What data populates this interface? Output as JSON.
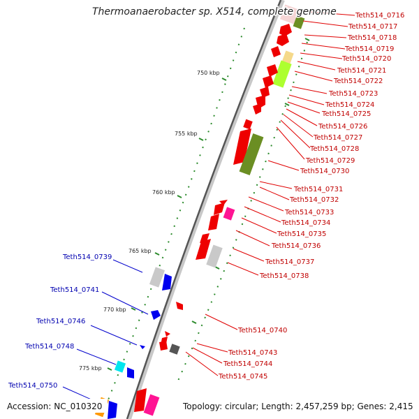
{
  "title": "Thermoanaerobacter sp. X514, complete genome",
  "footer": {
    "accession": "Accession: NC_010320",
    "topology": "Topology: circular; Length: 2,457,259 bp; Genes: 2,415"
  },
  "colors": {
    "backbone": "#666666",
    "ticks": "#2a8a2a",
    "right_labels": "#c00000",
    "left_labels": "#0000b0",
    "gene_red": "#ee0000",
    "gene_blue": "#0000ee",
    "gene_olive": "#6b8e23",
    "gene_gray": "#bbbbbb",
    "gene_magenta": "#ff1493",
    "gene_cyan": "#00e5ee",
    "gene_orange": "#ff9900"
  },
  "kbp_labels": [
    "750 kbp",
    "755 kbp",
    "760 kbp",
    "765 kbp",
    "770 kbp",
    "775 kbp"
  ],
  "right_genes": [
    "Teth514_0716",
    "Teth514_0717",
    "Teth514_0718",
    "Teth514_0719",
    "Teth514_0720",
    "Teth514_0721",
    "Teth514_0722",
    "Teth514_0723",
    "Teth514_0724",
    "Teth514_0725",
    "Teth514_0726",
    "Teth514_0727",
    "Teth514_0728",
    "Teth514_0729",
    "Teth514_0730",
    "Teth514_0731",
    "Teth514_0732",
    "Teth514_0733",
    "Teth514_0734",
    "Teth514_0735",
    "Teth514_0736",
    "Teth514_0737",
    "Teth514_0738",
    "Teth514_0740",
    "Teth514_0743",
    "Teth514_0744",
    "Teth514_0745"
  ],
  "left_genes": [
    "Teth514_0739",
    "Teth514_0741",
    "Teth514_0746",
    "Teth514_0748",
    "Teth514_0750"
  ]
}
